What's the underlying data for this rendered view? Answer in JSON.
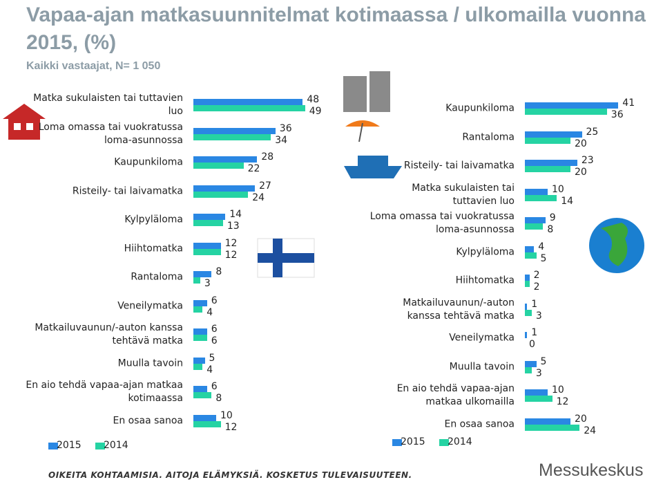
{
  "title": "Vapaa-ajan matkasuunnitelmat kotimaassa / ulkomailla vuonna 2015, (%)",
  "subtitle": "Kaikki vastaajat, N= 1 050",
  "footer": "OIKEITA KOHTAAMISIA. AITOJA ELÄMYKSIÄ. KOSKETUS TULEVAISUUTEEN.",
  "brand": "Messukeskus",
  "chart_data": [
    {
      "type": "bar",
      "orientation": "horizontal",
      "categories": [
        "Matka sukulaisten tai tuttavien luo",
        "Loma omassa tai vuokratussa loma-asunnossa",
        "Kaupunkiloma",
        "Risteily- tai laivamatka",
        "Kylpyläloma",
        "Hiihtomatka",
        "Rantaloma",
        "Veneilymatka",
        "Matkailuvaunun/-auton kanssa tehtävä matka",
        "Muulla tavoin",
        "En aio tehdä vapaa-ajan matkaa kotimaassa",
        "En osaa sanoa"
      ],
      "series": [
        {
          "name": "2015",
          "color": "#2a87e3",
          "values": [
            48,
            36,
            28,
            27,
            14,
            12,
            8,
            6,
            6,
            5,
            6,
            10
          ]
        },
        {
          "name": "2014",
          "color": "#25d3a3",
          "values": [
            49,
            34,
            22,
            24,
            13,
            12,
            3,
            4,
            6,
            4,
            8,
            12
          ]
        }
      ]
    },
    {
      "type": "bar",
      "orientation": "horizontal",
      "categories": [
        "Kaupunkiloma",
        "Rantaloma",
        "Risteily- tai laivamatka",
        "Matka sukulaisten tai tuttavien luo",
        "Loma omassa tai vuokratussa loma-asunnossa",
        "Kylpyläloma",
        "Hiihtomatka",
        "Matkailuvaunun/-auton kanssa tehtävä matka",
        "Veneilymatka",
        "Muulla tavoin",
        "En aio tehdä vapaa-ajan matkaa ulkomailla",
        "En osaa sanoa"
      ],
      "series": [
        {
          "name": "2015",
          "color": "#2a87e3",
          "values": [
            41,
            25,
            23,
            10,
            9,
            4,
            2,
            1,
            1,
            5,
            10,
            20
          ]
        },
        {
          "name": "2014",
          "color": "#25d3a3",
          "values": [
            36,
            20,
            20,
            14,
            8,
            5,
            2,
            3,
            0,
            3,
            12,
            24
          ]
        }
      ]
    }
  ]
}
